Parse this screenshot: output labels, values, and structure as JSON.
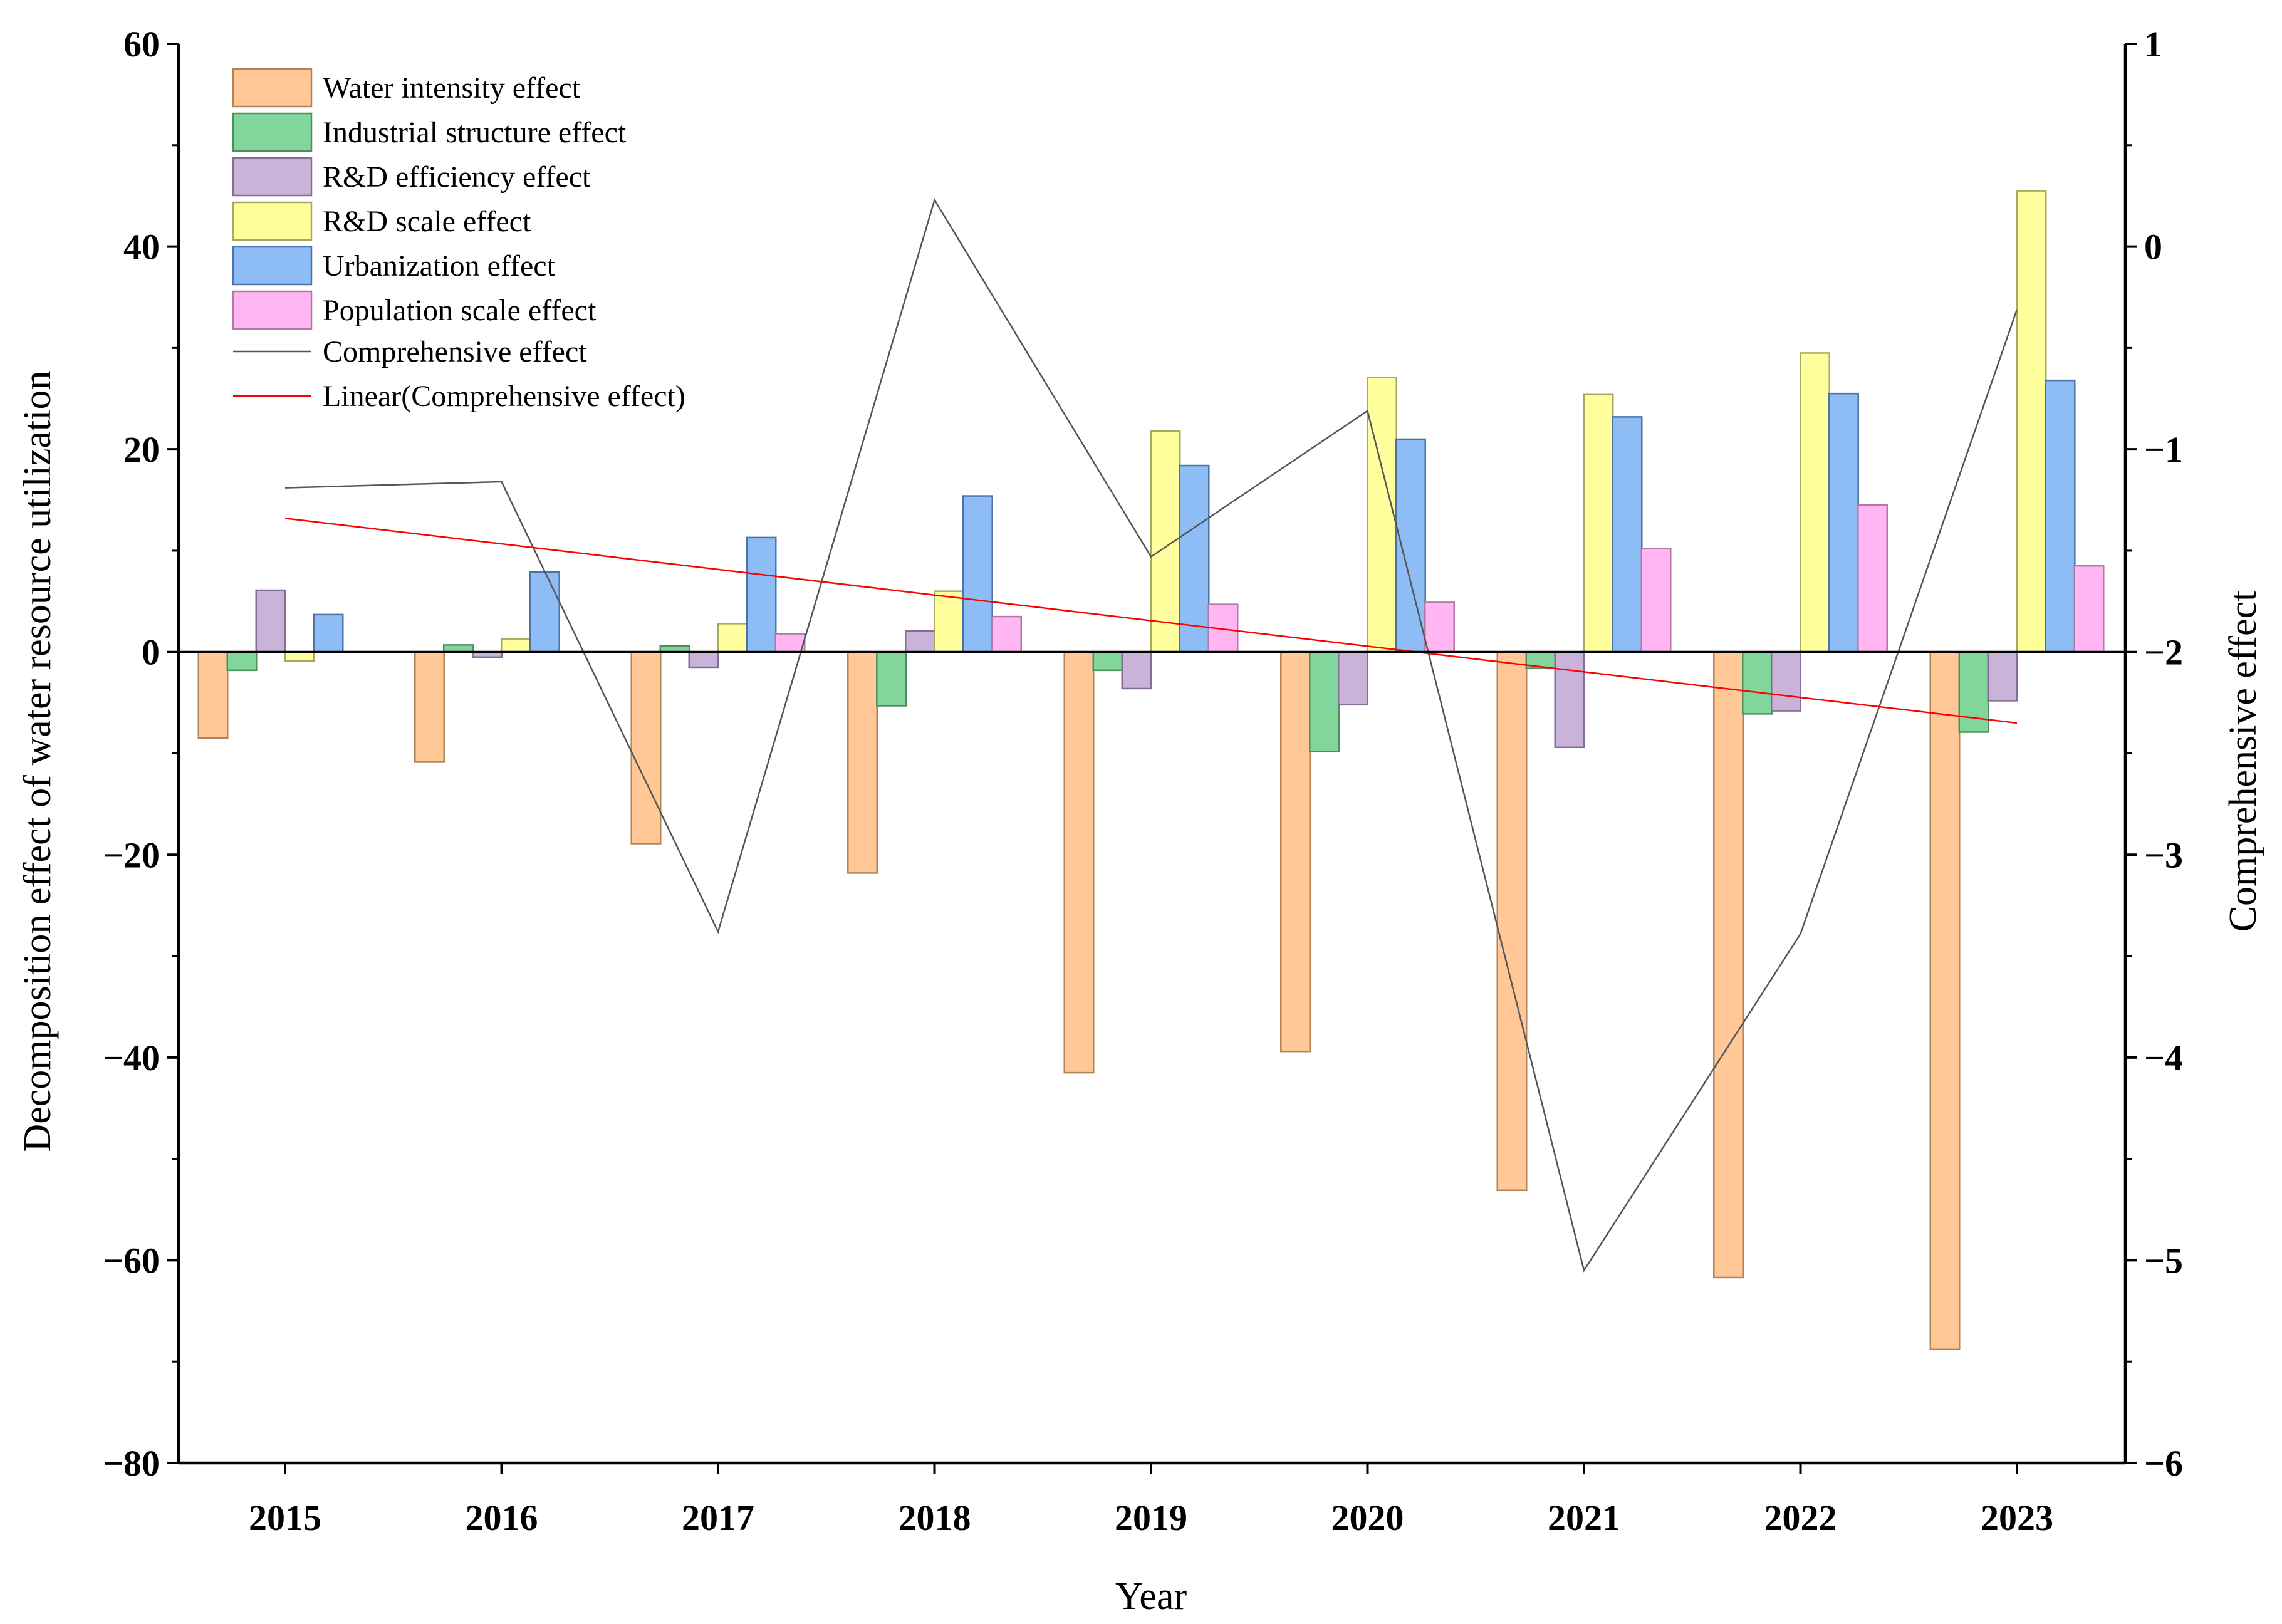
{
  "chart_data": {
    "type": "bar",
    "title": "",
    "xlabel": "Year",
    "ylabel_left": "Decomposition effect of water resource utilization",
    "ylabel_right": "Comprehensive effect",
    "categories": [
      "2015",
      "2016",
      "2017",
      "2018",
      "2019",
      "2020",
      "2021",
      "2022",
      "2023"
    ],
    "ylim_left": [
      -80,
      60
    ],
    "yticks_left": [
      60,
      40,
      20,
      0,
      -20,
      -40,
      -60,
      -80
    ],
    "ylim_right": [
      -6,
      1
    ],
    "yticks_right": [
      1,
      0,
      -1,
      -2,
      -3,
      -4,
      -5,
      -6
    ],
    "yticklabels_left": [
      "60",
      "40",
      "20",
      "0",
      "−20",
      "−40",
      "−60",
      "−80"
    ],
    "yticklabels_right": [
      "1",
      "0",
      "−1",
      "−2",
      "−3",
      "−4",
      "−5",
      "−6"
    ],
    "legend_position": "top-left",
    "grid": false,
    "series": [
      {
        "name": "Water intensity effect",
        "color": "#FFC896",
        "stroke": "#B0845A",
        "values": [
          -8.5,
          -10.8,
          -18.9,
          -21.8,
          -41.5,
          -39.4,
          -53.1,
          -61.7,
          -68.8
        ]
      },
      {
        "name": "Industrial structure effect",
        "color": "#82D69C",
        "stroke": "#4F8F5F",
        "values": [
          -1.8,
          0.7,
          0.6,
          -5.3,
          -1.8,
          -9.8,
          -1.6,
          -6.1,
          -7.9
        ]
      },
      {
        "name": "R&D efficiency effect",
        "color": "#C9B3D8",
        "stroke": "#866C98",
        "values": [
          6.1,
          -0.5,
          -1.5,
          2.1,
          -3.6,
          -5.2,
          -9.4,
          -5.8,
          -4.8
        ]
      },
      {
        "name": "R&D scale effect",
        "color": "#FFFF9E",
        "stroke": "#A8A860",
        "values": [
          -0.9,
          1.3,
          2.8,
          6.0,
          21.8,
          27.1,
          25.4,
          29.5,
          45.5
        ]
      },
      {
        "name": "Urbanization effect",
        "color": "#8EBDF5",
        "stroke": "#4C73A8",
        "values": [
          3.7,
          7.9,
          11.3,
          15.4,
          18.4,
          21.0,
          23.2,
          25.5,
          26.8
        ]
      },
      {
        "name": "Population scale effect",
        "color": "#FFB6F2",
        "stroke": "#B07AA7",
        "values": [
          0.0,
          0.0,
          1.8,
          3.5,
          4.7,
          4.9,
          10.2,
          14.5,
          8.5
        ]
      }
    ],
    "lines": [
      {
        "name": "Comprehensive effect",
        "axis": "right",
        "color": "#555555",
        "values": [
          -1.19,
          -1.16,
          -3.38,
          0.23,
          -1.53,
          -0.81,
          -5.05,
          -3.39,
          -0.31
        ]
      },
      {
        "name": "Linear(Comprehensive effect)",
        "axis": "right",
        "color": "#FF0000",
        "values": [
          -1.34,
          null,
          null,
          null,
          null,
          null,
          null,
          null,
          -2.35
        ]
      }
    ]
  }
}
